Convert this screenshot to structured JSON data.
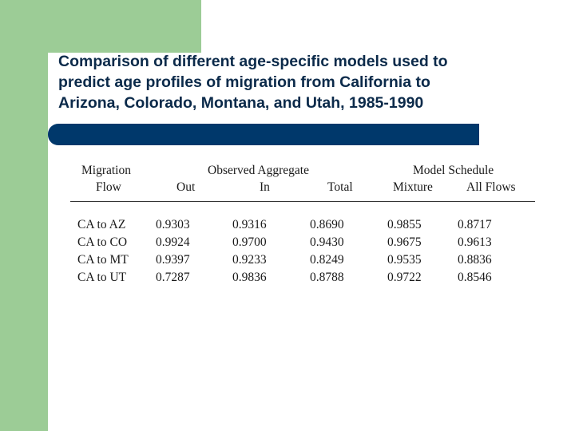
{
  "slide": {
    "title": "Comparison of different age-specific models used to\npredict age profiles of migration from California to\nArizona, Colorado, Montana, and Utah, 1985-1990",
    "colors": {
      "accent_green": "#9ccc96",
      "title_bar_navy": "#00386b",
      "title_text": "#0b2a4a"
    }
  },
  "table": {
    "group_headers": {
      "migration": "Migration",
      "observed_aggregate": "Observed Aggregate",
      "model_schedule": "Model Schedule"
    },
    "columns": [
      "Flow",
      "Out",
      "In",
      "Total",
      "Mixture",
      "All Flows"
    ],
    "rows": [
      {
        "flow": "CA to AZ",
        "out": "0.9303",
        "in": "0.9316",
        "total": "0.8690",
        "mixture": "0.9855",
        "all_flows": "0.8717"
      },
      {
        "flow": "CA to CO",
        "out": "0.9924",
        "in": "0.9700",
        "total": "0.9430",
        "mixture": "0.9675",
        "all_flows": "0.9613"
      },
      {
        "flow": "CA to MT",
        "out": "0.9397",
        "in": "0.9233",
        "total": "0.8249",
        "mixture": "0.9535",
        "all_flows": "0.8836"
      },
      {
        "flow": "CA to UT",
        "out": "0.7287",
        "in": "0.9836",
        "total": "0.8788",
        "mixture": "0.9722",
        "all_flows": "0.8546"
      }
    ]
  }
}
